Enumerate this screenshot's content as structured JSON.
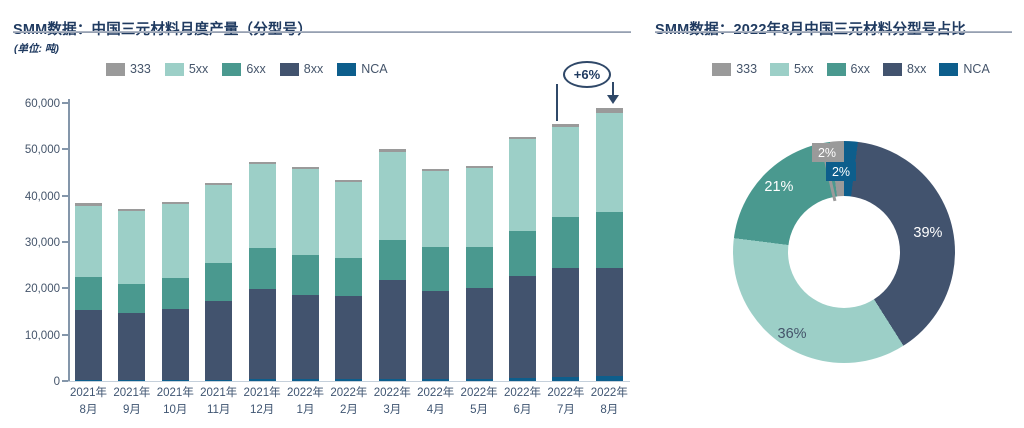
{
  "colors": {
    "series": {
      "333": "#9A9A9A",
      "5xx": "#9CCFC7",
      "6xx": "#4A998F",
      "8xx": "#42536E",
      "NCA": "#0D5E8C"
    },
    "title_text": "#1F3A60",
    "axis_text": "#44546A",
    "annotation": "#2F4868",
    "inside_label_light": "#FFFFFF",
    "inside_label_dark": "#44546A"
  },
  "left_chart": {
    "title": "SMM数据：中国三元材料月度产量（分型号）",
    "unit_note": "(单位: 吨)",
    "annotation_label": "+6%",
    "legend": [
      "333",
      "5xx",
      "6xx",
      "8xx",
      "NCA"
    ]
  },
  "right_chart": {
    "title": "SMM数据：2022年8月中国三元材料分型号占比",
    "legend": [
      "333",
      "5xx",
      "6xx",
      "8xx",
      "NCA"
    ]
  },
  "chart_data": [
    {
      "type": "bar",
      "stacked": true,
      "title": "SMM数据：中国三元材料月度产量（分型号）",
      "unit": "吨",
      "categories": [
        "2021年8月",
        "2021年9月",
        "2021年10月",
        "2021年11月",
        "2021年12月",
        "2022年1月",
        "2022年2月",
        "2022年3月",
        "2022年4月",
        "2022年5月",
        "2022年6月",
        "2022年7月",
        "2022年8月"
      ],
      "stack_order_bottom_to_top": [
        "NCA",
        "8xx",
        "6xx",
        "5xx",
        "333"
      ],
      "series": [
        {
          "name": "NCA",
          "values": [
            200,
            200,
            250,
            300,
            350,
            400,
            350,
            450,
            500,
            500,
            650,
            900,
            1050
          ]
        },
        {
          "name": "8xx",
          "values": [
            15100,
            14500,
            15300,
            17000,
            19500,
            18200,
            18000,
            21300,
            18900,
            19600,
            22000,
            23400,
            23300
          ]
        },
        {
          "name": "6xx",
          "values": [
            7100,
            6300,
            6700,
            8100,
            8900,
            8600,
            8200,
            8600,
            9600,
            8800,
            9700,
            11200,
            12200
          ]
        },
        {
          "name": "5xx",
          "values": [
            15400,
            15700,
            16000,
            16900,
            18100,
            18500,
            16400,
            19100,
            16400,
            17100,
            19900,
            19300,
            21300
          ]
        },
        {
          "name": "333",
          "values": [
            700,
            500,
            500,
            500,
            500,
            450,
            450,
            550,
            450,
            450,
            500,
            700,
            1100
          ]
        }
      ],
      "ylim": [
        0,
        60000
      ],
      "y_tick_labels": [
        "0",
        "10,000",
        "20,000",
        "30,000",
        "40,000",
        "50,000",
        "60,000"
      ],
      "grid": false,
      "legend_position": "top",
      "annotation": {
        "text": "+6%",
        "applies_to": "2022年8月 vs 2022年7月"
      }
    },
    {
      "type": "pie",
      "subtype": "donut",
      "title": "SMM数据：2022年8月中国三元材料分型号占比",
      "slices_clockwise_from_top": [
        {
          "name": "NCA",
          "pct": 2,
          "label": "2%"
        },
        {
          "name": "8xx",
          "pct": 39,
          "label": "39%"
        },
        {
          "name": "5xx",
          "pct": 36,
          "label": "36%"
        },
        {
          "name": "6xx",
          "pct": 21,
          "label": "21%"
        },
        {
          "name": "333",
          "pct": 2,
          "label": "2%"
        }
      ],
      "legend_position": "top"
    }
  ]
}
